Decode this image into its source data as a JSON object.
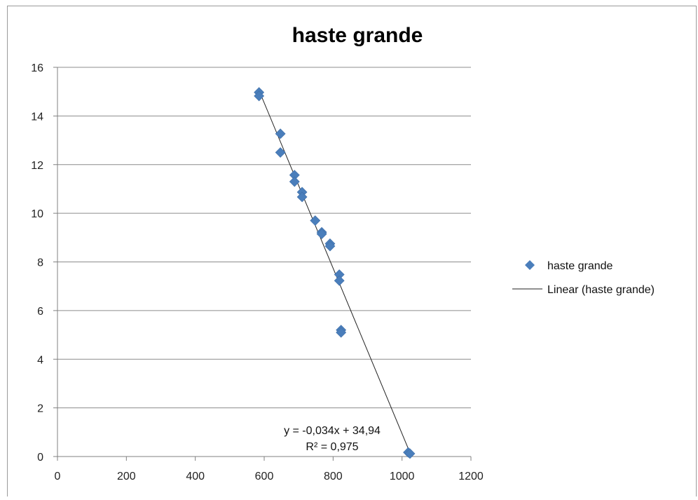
{
  "chart_data": {
    "type": "scatter",
    "title": "haste grande",
    "xlabel": "",
    "ylabel": "",
    "xlim": [
      0,
      1200
    ],
    "ylim": [
      0,
      16
    ],
    "x_ticks": [
      "0",
      "200",
      "400",
      "600",
      "800",
      "1000",
      "1200"
    ],
    "y_ticks": [
      "0",
      "2",
      "4",
      "6",
      "8",
      "10",
      "12",
      "14",
      "16"
    ],
    "grid": "horizontal",
    "legend_position": "right",
    "series": [
      {
        "name": "haste grande",
        "color": "#4a7ebb",
        "marker": "diamond",
        "points": [
          [
            585,
            14.97
          ],
          [
            585,
            14.82
          ],
          [
            647,
            13.27
          ],
          [
            647,
            12.5
          ],
          [
            688,
            11.57
          ],
          [
            688,
            11.3
          ],
          [
            710,
            10.87
          ],
          [
            710,
            10.67
          ],
          [
            748,
            9.7
          ],
          [
            767,
            9.22
          ],
          [
            767,
            9.15
          ],
          [
            791,
            8.75
          ],
          [
            791,
            8.65
          ],
          [
            818,
            7.48
          ],
          [
            818,
            7.23
          ],
          [
            823,
            5.2
          ],
          [
            823,
            5.1
          ],
          [
            1018,
            0.17
          ],
          [
            1023,
            0.12
          ]
        ]
      }
    ],
    "trendline": {
      "name": "Linear (haste grande)",
      "color": "#222222",
      "x_range": [
        586,
        1027
      ],
      "equation": "y = -0,034x + 34,94",
      "r_squared": "R² = 0,975"
    }
  }
}
